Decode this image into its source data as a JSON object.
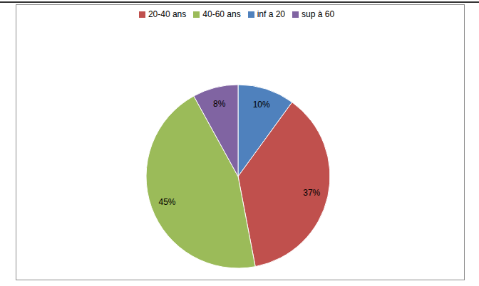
{
  "chart_data": {
    "type": "pie",
    "categories": [
      "inf a 20",
      "20-40 ans",
      "40-60 ans",
      "sup à 60"
    ],
    "values": [
      10,
      37,
      45,
      8
    ],
    "value_labels": [
      "10%",
      "37%",
      "45%",
      "8%"
    ],
    "colors": [
      "#4f81bd",
      "#c0504d",
      "#9bbb59",
      "#8064a2"
    ],
    "legend": "top",
    "data_labels": true
  }
}
